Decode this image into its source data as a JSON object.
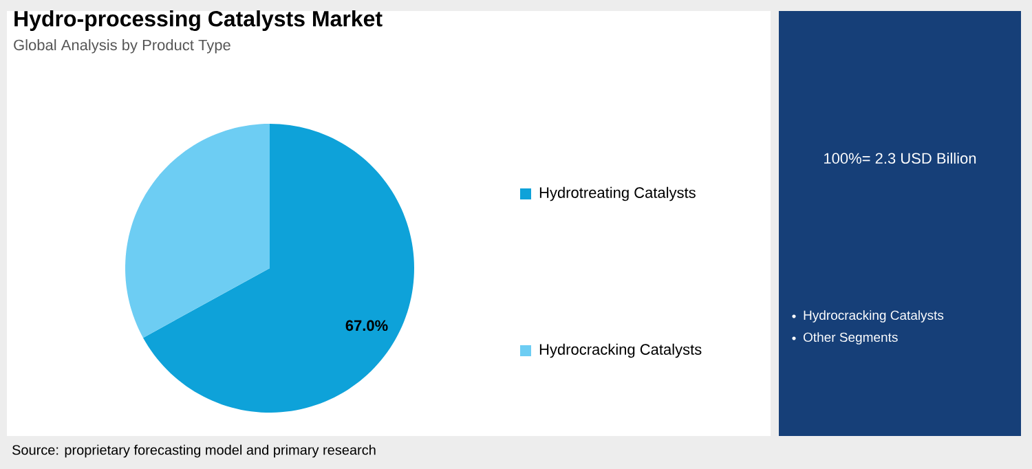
{
  "chart_data": {
    "type": "pie",
    "title": "Hydro-processing Catalysts Market",
    "subtitle": "Global Analysis by Product Type",
    "categories": [
      "Hydrotreating Catalysts",
      "Hydrocracking Catalysts"
    ],
    "values": [
      67.0,
      33.0
    ],
    "colors": [
      "#0ea2d9",
      "#6dcdf3"
    ],
    "value_labels": [
      "67.0%",
      null
    ],
    "legend": "right",
    "annotations": [
      "100%= 2.3 USD Billion",
      "Hydrocracking Catalysts",
      "Other Segments",
      "Source: proprietary forecasting model and primary research"
    ]
  }
}
